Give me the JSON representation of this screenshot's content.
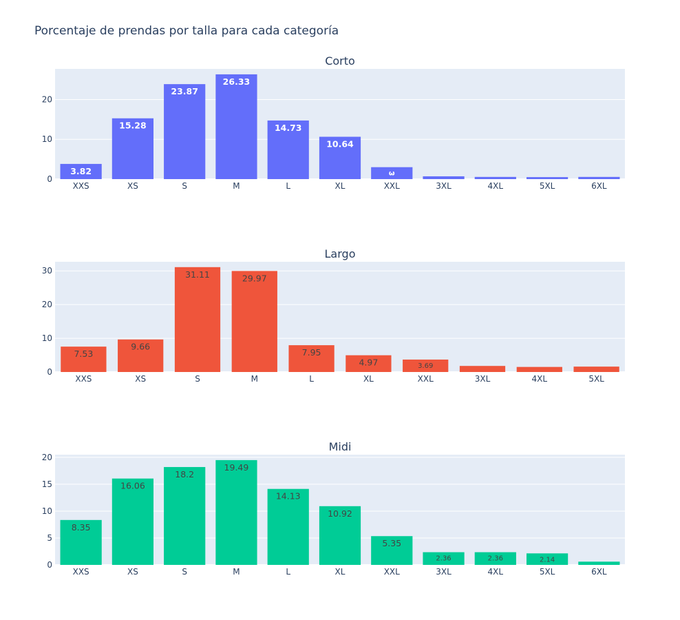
{
  "figure": {
    "title": "Porcentaje de prendas por talla para cada categoría"
  },
  "chart_data": [
    {
      "type": "bar",
      "title": "Corto",
      "color": "#636efa",
      "label_color": "#ffffff",
      "categories": [
        "XXS",
        "XS",
        "S",
        "M",
        "L",
        "XL",
        "XXL",
        "3XL",
        "4XL",
        "5XL",
        "6XL"
      ],
      "values": [
        3.82,
        15.28,
        23.87,
        26.33,
        14.73,
        10.64,
        3.0,
        0.7,
        0.55,
        0.5,
        0.55
      ],
      "labels": [
        "3.82",
        "15.28",
        "23.87",
        "26.33",
        "14.73",
        "10.64",
        "ω",
        "",
        "",
        "",
        ""
      ],
      "yticks": [
        0,
        10,
        20
      ],
      "ylim": [
        0,
        27.7
      ],
      "grid": true
    },
    {
      "type": "bar",
      "title": "Largo",
      "color": "#ef553b",
      "label_color": "#444444",
      "categories": [
        "XXS",
        "XS",
        "S",
        "M",
        "L",
        "XL",
        "XXL",
        "3XL",
        "4XL",
        "5XL"
      ],
      "values": [
        7.53,
        9.66,
        31.11,
        29.97,
        7.95,
        4.97,
        3.69,
        1.8,
        1.5,
        1.6
      ],
      "labels": [
        "7.53",
        "9.66",
        "31.11",
        "29.97",
        "7.95",
        "4.97",
        "3.69",
        "",
        "",
        ""
      ],
      "yticks": [
        0,
        10,
        20,
        30
      ],
      "ylim": [
        0,
        32.7
      ],
      "grid": true
    },
    {
      "type": "bar",
      "title": "Midi",
      "color": "#00cc96",
      "label_color": "#444444",
      "categories": [
        "XXS",
        "XS",
        "S",
        "M",
        "L",
        "XL",
        "XXL",
        "3XL",
        "4XL",
        "5XL",
        "6XL"
      ],
      "values": [
        8.35,
        16.06,
        18.2,
        19.49,
        14.13,
        10.92,
        5.35,
        2.36,
        2.36,
        2.14,
        0.6
      ],
      "labels": [
        "8.35",
        "16.06",
        "18.2",
        "19.49",
        "14.13",
        "10.92",
        "5.35",
        "2.36",
        "2.36",
        "2.14",
        ""
      ],
      "yticks": [
        0,
        5,
        10,
        15,
        20
      ],
      "ylim": [
        0,
        20.5
      ],
      "grid": true
    }
  ]
}
